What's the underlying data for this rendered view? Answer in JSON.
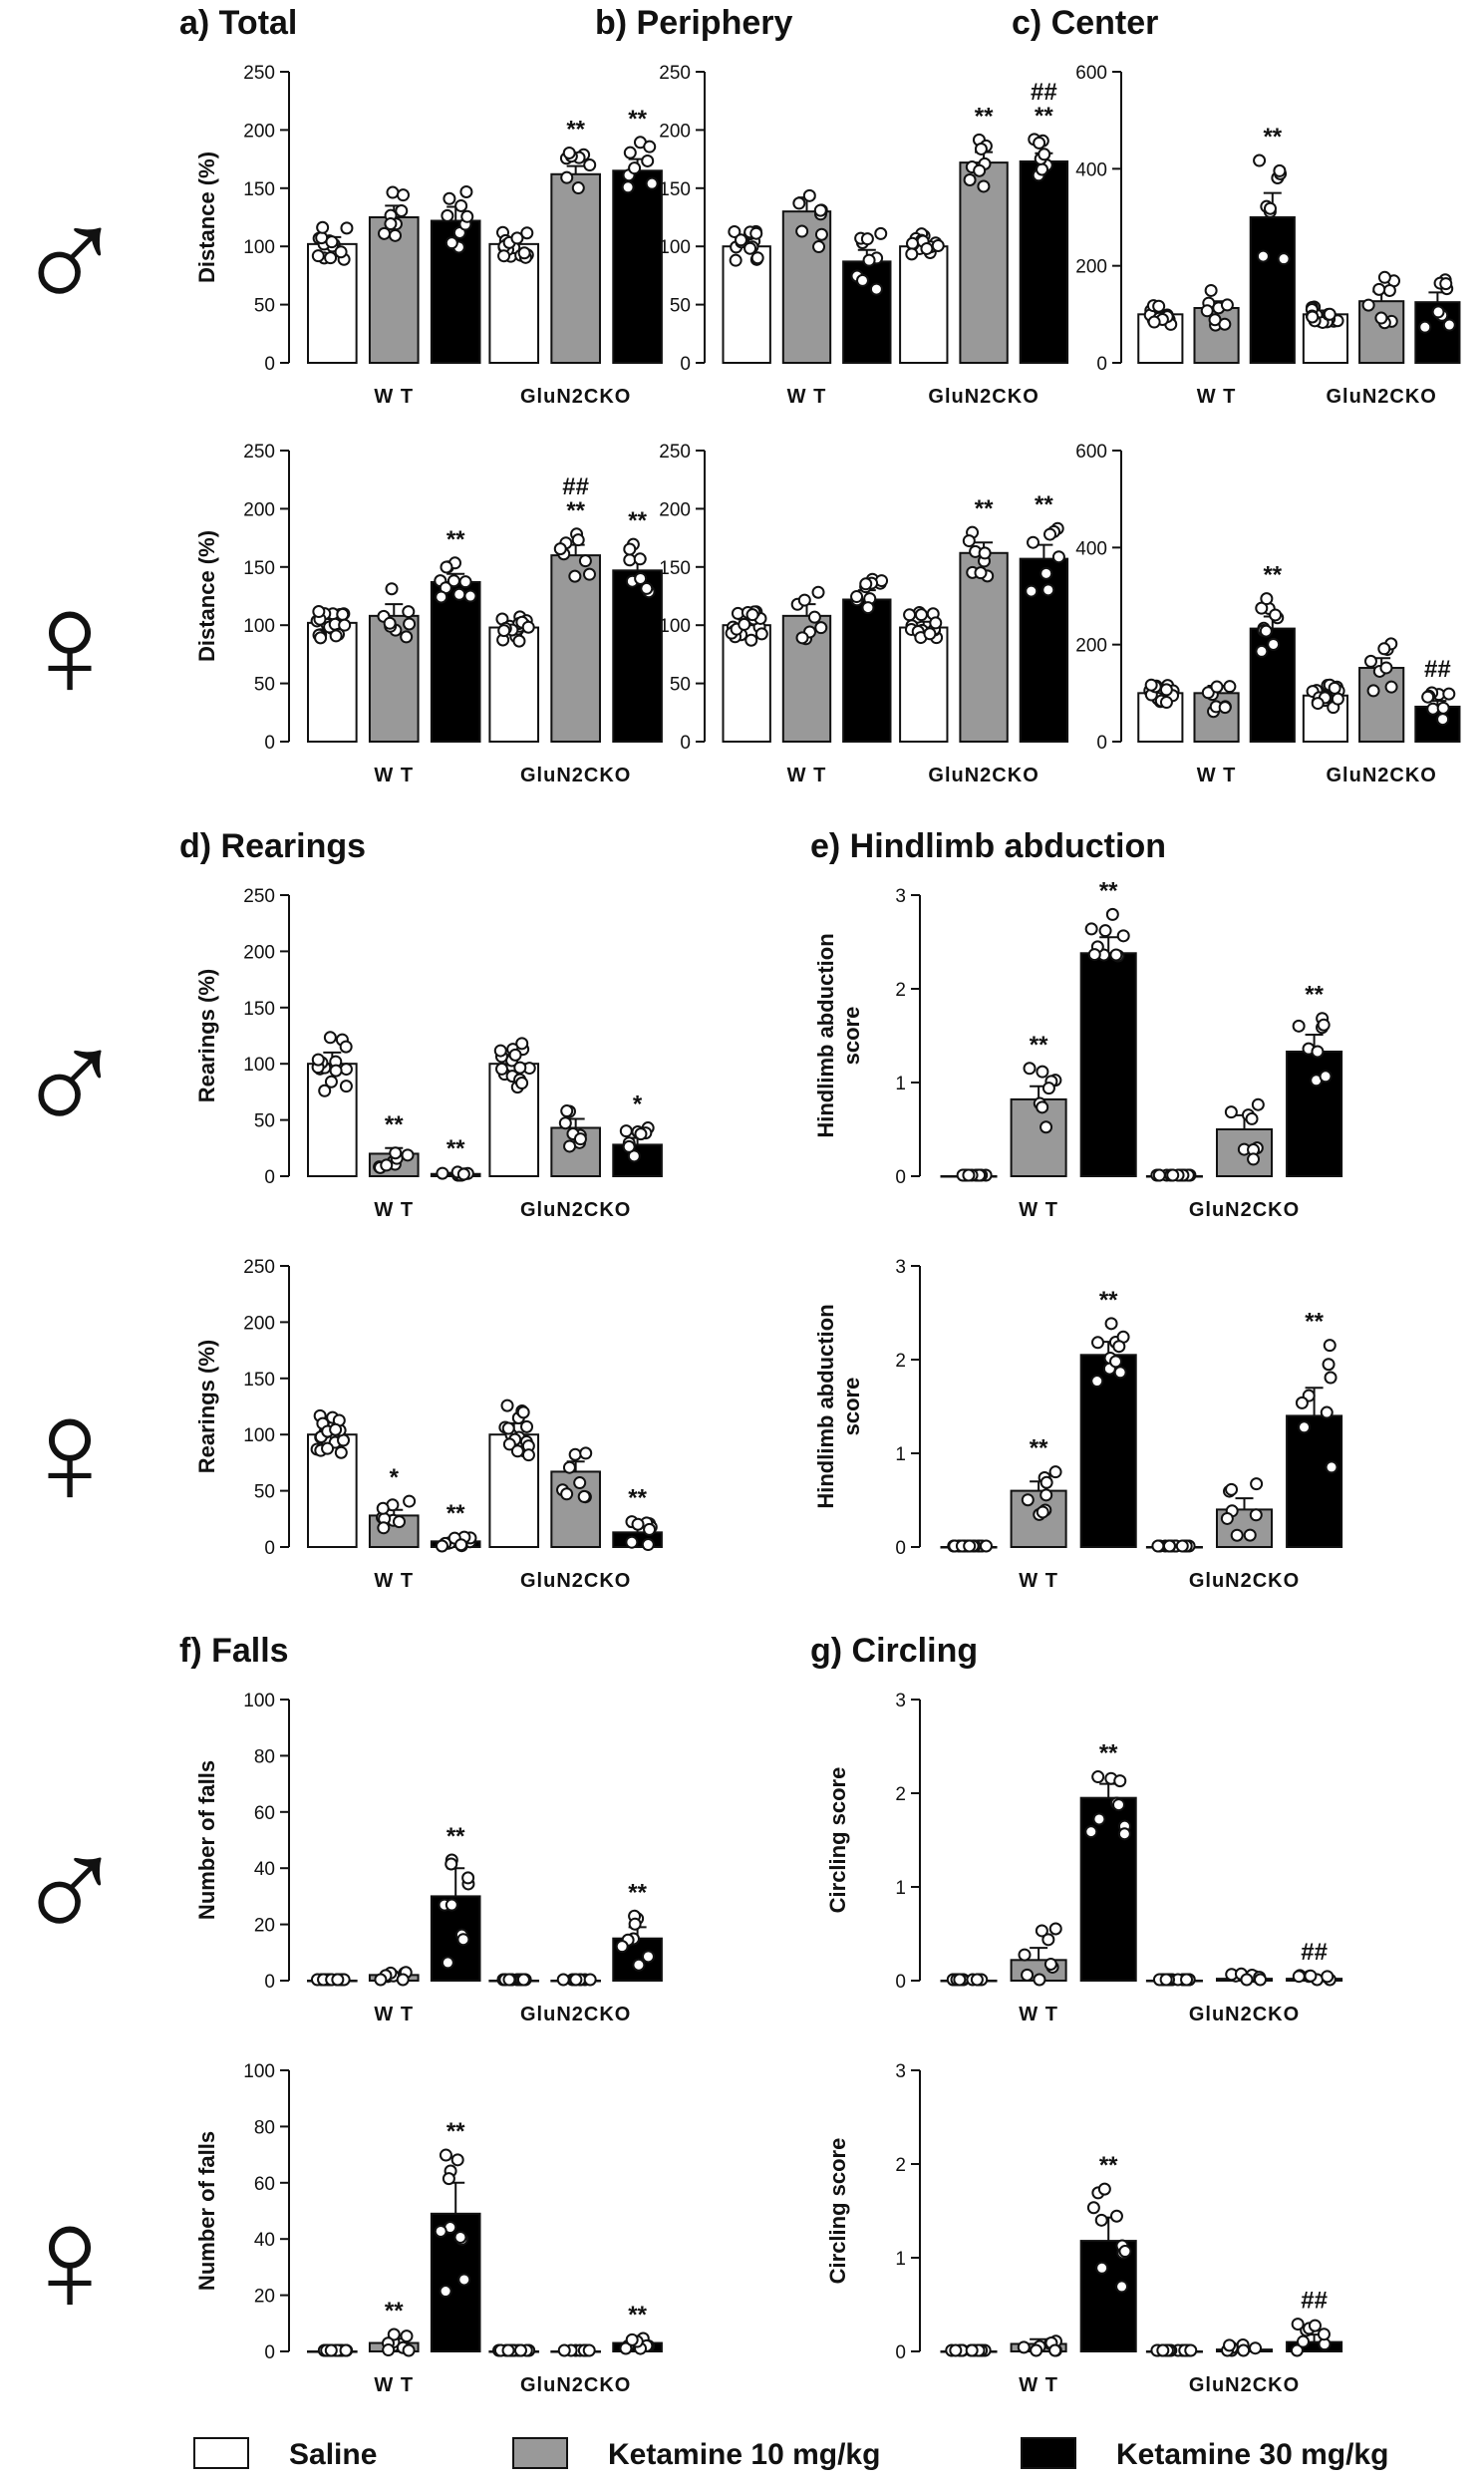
{
  "sex_symbols": {
    "male": "♂",
    "female": "♀"
  },
  "legend": [
    {
      "label": "Saline",
      "color": "#ffffff"
    },
    {
      "label": "Ketamine 10 mg/kg",
      "color": "#999999"
    },
    {
      "label": "Ketamine 30 mg/kg",
      "color": "#000000"
    }
  ],
  "chart_data": [
    {
      "id": "a_m",
      "type": "bar",
      "title": "a) Total",
      "sex": "male",
      "ylabel": "Distance (%)",
      "ylim": [
        0,
        250
      ],
      "yticks": [
        0,
        50,
        100,
        150,
        200,
        250
      ],
      "groups": [
        "W T",
        "GluN2CKO"
      ],
      "series": [
        "Saline",
        "Ketamine 10 mg/kg",
        "Ketamine 30 mg/kg"
      ],
      "values": [
        [
          102,
          125,
          122
        ],
        [
          102,
          162,
          165
        ]
      ],
      "sem": [
        [
          6,
          10,
          12
        ],
        [
          4,
          7,
          10
        ]
      ],
      "sig": [
        [
          "",
          "",
          ""
        ],
        [
          "",
          "**",
          "**"
        ]
      ],
      "n": [
        [
          14,
          8,
          9
        ],
        [
          16,
          8,
          8
        ]
      ]
    },
    {
      "id": "b_m",
      "type": "bar",
      "title": "b) Periphery",
      "sex": "male",
      "ylabel": "",
      "ylim": [
        0,
        250
      ],
      "yticks": [
        0,
        50,
        100,
        150,
        200,
        250
      ],
      "groups": [
        "W T",
        "GluN2CKO"
      ],
      "series": [
        "Saline",
        "Ketamine 10 mg/kg",
        "Ketamine 30 mg/kg"
      ],
      "values": [
        [
          100,
          130,
          87
        ],
        [
          100,
          172,
          173
        ]
      ],
      "sem": [
        [
          5,
          12,
          10
        ],
        [
          4,
          9,
          7
        ]
      ],
      "sig": [
        [
          "",
          "",
          ""
        ],
        [
          "",
          "**",
          "##\n**"
        ]
      ],
      "n": [
        [
          14,
          8,
          9
        ],
        [
          16,
          8,
          8
        ]
      ]
    },
    {
      "id": "c_m",
      "type": "bar",
      "title": "c) Center",
      "sex": "male",
      "ylabel": "",
      "ylim": [
        0,
        600
      ],
      "yticks": [
        0,
        200,
        400,
        600
      ],
      "groups": [
        "W T",
        "GluN2CKO"
      ],
      "series": [
        "Saline",
        "Ketamine 10 mg/kg",
        "Ketamine 30 mg/kg"
      ],
      "values": [
        [
          100,
          113,
          300
        ],
        [
          100,
          127,
          125
        ]
      ],
      "sem": [
        [
          8,
          14,
          50
        ],
        [
          8,
          20,
          20
        ]
      ],
      "sig": [
        [
          "",
          "",
          "**"
        ],
        [
          "",
          "",
          ""
        ]
      ],
      "n": [
        [
          14,
          8,
          9
        ],
        [
          16,
          8,
          8
        ]
      ]
    },
    {
      "id": "a_f",
      "type": "bar",
      "title": "",
      "sex": "female",
      "ylabel": "Distance (%)",
      "ylim": [
        0,
        250
      ],
      "yticks": [
        0,
        50,
        100,
        150,
        200,
        250
      ],
      "groups": [
        "W T",
        "GluN2CKO"
      ],
      "series": [
        "Saline",
        "Ketamine 10 mg/kg",
        "Ketamine 30 mg/kg"
      ],
      "values": [
        [
          102,
          108,
          137
        ],
        [
          98,
          160,
          147
        ]
      ],
      "sem": [
        [
          5,
          10,
          7
        ],
        [
          5,
          9,
          10
        ]
      ],
      "sig": [
        [
          "",
          "",
          "**"
        ],
        [
          "",
          "##\n**",
          "**"
        ]
      ],
      "n": [
        [
          18,
          8,
          10
        ],
        [
          16,
          8,
          8
        ]
      ]
    },
    {
      "id": "b_f",
      "type": "bar",
      "title": "",
      "sex": "female",
      "ylabel": "",
      "ylim": [
        0,
        250
      ],
      "yticks": [
        0,
        50,
        100,
        150,
        200,
        250
      ],
      "groups": [
        "W T",
        "GluN2CKO"
      ],
      "series": [
        "Saline",
        "Ketamine 10 mg/kg",
        "Ketamine 30 mg/kg"
      ],
      "values": [
        [
          100,
          108,
          122
        ],
        [
          98,
          162,
          157
        ]
      ],
      "sem": [
        [
          5,
          10,
          8
        ],
        [
          5,
          9,
          12
        ]
      ],
      "sig": [
        [
          "",
          "",
          ""
        ],
        [
          "",
          "**",
          "**"
        ]
      ],
      "n": [
        [
          18,
          8,
          10
        ],
        [
          16,
          8,
          8
        ]
      ]
    },
    {
      "id": "c_f",
      "type": "bar",
      "title": "",
      "sex": "female",
      "ylabel": "",
      "ylim": [
        0,
        600
      ],
      "yticks": [
        0,
        200,
        400,
        600
      ],
      "groups": [
        "W T",
        "GluN2CKO"
      ],
      "series": [
        "Saline",
        "Ketamine 10 mg/kg",
        "Ketamine 30 mg/kg"
      ],
      "values": [
        [
          100,
          100,
          233
        ],
        [
          95,
          152,
          72
        ]
      ],
      "sem": [
        [
          8,
          15,
          25
        ],
        [
          10,
          20,
          12
        ]
      ],
      "sig": [
        [
          "",
          "",
          "**"
        ],
        [
          "",
          "",
          "##"
        ]
      ],
      "n": [
        [
          18,
          8,
          10
        ],
        [
          16,
          8,
          8
        ]
      ]
    },
    {
      "id": "d_m",
      "type": "bar",
      "title": "d) Rearings",
      "sex": "male",
      "ylabel": "Rearings (%)",
      "ylim": [
        0,
        250
      ],
      "yticks": [
        0,
        50,
        100,
        150,
        200,
        250
      ],
      "groups": [
        "W T",
        "GluN2CKO"
      ],
      "series": [
        "Saline",
        "Ketamine 10 mg/kg",
        "Ketamine 30 mg/kg"
      ],
      "values": [
        [
          100,
          20,
          2
        ],
        [
          100,
          43,
          28
        ]
      ],
      "sem": [
        [
          10,
          5,
          1
        ],
        [
          8,
          8,
          6
        ]
      ],
      "sig": [
        [
          "",
          "**",
          "**"
        ],
        [
          "",
          "",
          "*"
        ]
      ],
      "n": [
        [
          14,
          8,
          9
        ],
        [
          16,
          8,
          8
        ]
      ]
    },
    {
      "id": "e_m",
      "type": "bar",
      "title": "e) Hindlimb abduction",
      "sex": "male",
      "ylabel": "Hindlimb abduction\nscore",
      "ylim": [
        0,
        3
      ],
      "yticks": [
        0,
        1,
        2,
        3
      ],
      "groups": [
        "W T",
        "GluN2CKO"
      ],
      "series": [
        "Saline",
        "Ketamine 10 mg/kg",
        "Ketamine 30 mg/kg"
      ],
      "values": [
        [
          0,
          0.82,
          2.38
        ],
        [
          0,
          0.5,
          1.33
        ]
      ],
      "sem": [
        [
          0,
          0.14,
          0.17
        ],
        [
          0,
          0.15,
          0.18
        ]
      ],
      "sig": [
        [
          "",
          "**",
          "**"
        ],
        [
          "",
          "",
          "**"
        ]
      ],
      "n": [
        [
          14,
          8,
          9
        ],
        [
          16,
          8,
          8
        ]
      ]
    },
    {
      "id": "d_f",
      "type": "bar",
      "title": "",
      "sex": "female",
      "ylabel": "Rearings (%)",
      "ylim": [
        0,
        250
      ],
      "yticks": [
        0,
        50,
        100,
        150,
        200,
        250
      ],
      "groups": [
        "W T",
        "GluN2CKO"
      ],
      "series": [
        "Saline",
        "Ketamine 10 mg/kg",
        "Ketamine 30 mg/kg"
      ],
      "values": [
        [
          100,
          28,
          5
        ],
        [
          100,
          67,
          13
        ]
      ],
      "sem": [
        [
          8,
          5,
          2
        ],
        [
          10,
          9,
          5
        ]
      ],
      "sig": [
        [
          "",
          "*",
          "**"
        ],
        [
          "",
          "",
          "**"
        ]
      ],
      "n": [
        [
          18,
          8,
          10
        ],
        [
          16,
          8,
          8
        ]
      ]
    },
    {
      "id": "e_f",
      "type": "bar",
      "title": "",
      "sex": "female",
      "ylabel": "Hindlimb abduction\nscore",
      "ylim": [
        0,
        3
      ],
      "yticks": [
        0,
        1,
        2,
        3
      ],
      "groups": [
        "W T",
        "GluN2CKO"
      ],
      "series": [
        "Saline",
        "Ketamine 10 mg/kg",
        "Ketamine 30 mg/kg"
      ],
      "values": [
        [
          0,
          0.6,
          2.05
        ],
        [
          0,
          0.4,
          1.4
        ]
      ],
      "sem": [
        [
          0,
          0.1,
          0.14
        ],
        [
          0,
          0.12,
          0.3
        ]
      ],
      "sig": [
        [
          "",
          "**",
          "**"
        ],
        [
          "",
          "",
          "**"
        ]
      ],
      "n": [
        [
          18,
          8,
          10
        ],
        [
          16,
          8,
          8
        ]
      ]
    },
    {
      "id": "f_m",
      "type": "bar",
      "title": "f) Falls",
      "sex": "male",
      "ylabel": "Number of falls",
      "ylim": [
        0,
        100
      ],
      "yticks": [
        0,
        20,
        40,
        60,
        80,
        100
      ],
      "groups": [
        "W T",
        "GluN2CKO"
      ],
      "series": [
        "Saline",
        "Ketamine 10 mg/kg",
        "Ketamine 30 mg/kg"
      ],
      "values": [
        [
          0,
          2,
          30
        ],
        [
          0,
          0,
          15
        ]
      ],
      "sem": [
        [
          0,
          1,
          10
        ],
        [
          0,
          0,
          4
        ]
      ],
      "sig": [
        [
          "",
          "",
          "**"
        ],
        [
          "",
          "",
          "**"
        ]
      ],
      "n": [
        [
          14,
          8,
          9
        ],
        [
          16,
          8,
          8
        ]
      ]
    },
    {
      "id": "g_m",
      "type": "bar",
      "title": "g) Circling",
      "sex": "male",
      "ylabel": "Circling score",
      "ylim": [
        0,
        3
      ],
      "yticks": [
        0,
        1,
        2,
        3
      ],
      "groups": [
        "W T",
        "GluN2CKO"
      ],
      "series": [
        "Saline",
        "Ketamine 10 mg/kg",
        "Ketamine 30 mg/kg"
      ],
      "values": [
        [
          0,
          0.22,
          1.95
        ],
        [
          0,
          0.02,
          0.02
        ]
      ],
      "sem": [
        [
          0,
          0.13,
          0.15
        ],
        [
          0,
          0.02,
          0.02
        ]
      ],
      "sig": [
        [
          "",
          "",
          "**"
        ],
        [
          "",
          "",
          "##"
        ]
      ],
      "n": [
        [
          14,
          8,
          9
        ],
        [
          16,
          8,
          8
        ]
      ]
    },
    {
      "id": "f_f",
      "type": "bar",
      "title": "",
      "sex": "female",
      "ylabel": "Number of falls",
      "ylim": [
        0,
        100
      ],
      "yticks": [
        0,
        20,
        40,
        60,
        80,
        100
      ],
      "groups": [
        "W T",
        "GluN2CKO"
      ],
      "series": [
        "Saline",
        "Ketamine 10 mg/kg",
        "Ketamine 30 mg/kg"
      ],
      "values": [
        [
          0,
          3,
          49
        ],
        [
          0,
          0,
          3
        ]
      ],
      "sem": [
        [
          0,
          1.5,
          11
        ],
        [
          0,
          0,
          1
        ]
      ],
      "sig": [
        [
          "",
          "**",
          "**"
        ],
        [
          "",
          "",
          "**"
        ]
      ],
      "n": [
        [
          18,
          8,
          10
        ],
        [
          16,
          8,
          8
        ]
      ]
    },
    {
      "id": "g_f",
      "type": "bar",
      "title": "",
      "sex": "female",
      "ylabel": "Circling score",
      "ylim": [
        0,
        3
      ],
      "yticks": [
        0,
        1,
        2,
        3
      ],
      "groups": [
        "W T",
        "GluN2CKO"
      ],
      "series": [
        "Saline",
        "Ketamine 10 mg/kg",
        "Ketamine 30 mg/kg"
      ],
      "values": [
        [
          0,
          0.08,
          1.18
        ],
        [
          0,
          0.02,
          0.1
        ]
      ],
      "sem": [
        [
          0,
          0.05,
          0.25
        ],
        [
          0,
          0.02,
          0.08
        ]
      ],
      "sig": [
        [
          "",
          "",
          "**"
        ],
        [
          "",
          "",
          "##"
        ]
      ],
      "n": [
        [
          18,
          8,
          10
        ],
        [
          16,
          8,
          8
        ]
      ]
    }
  ]
}
